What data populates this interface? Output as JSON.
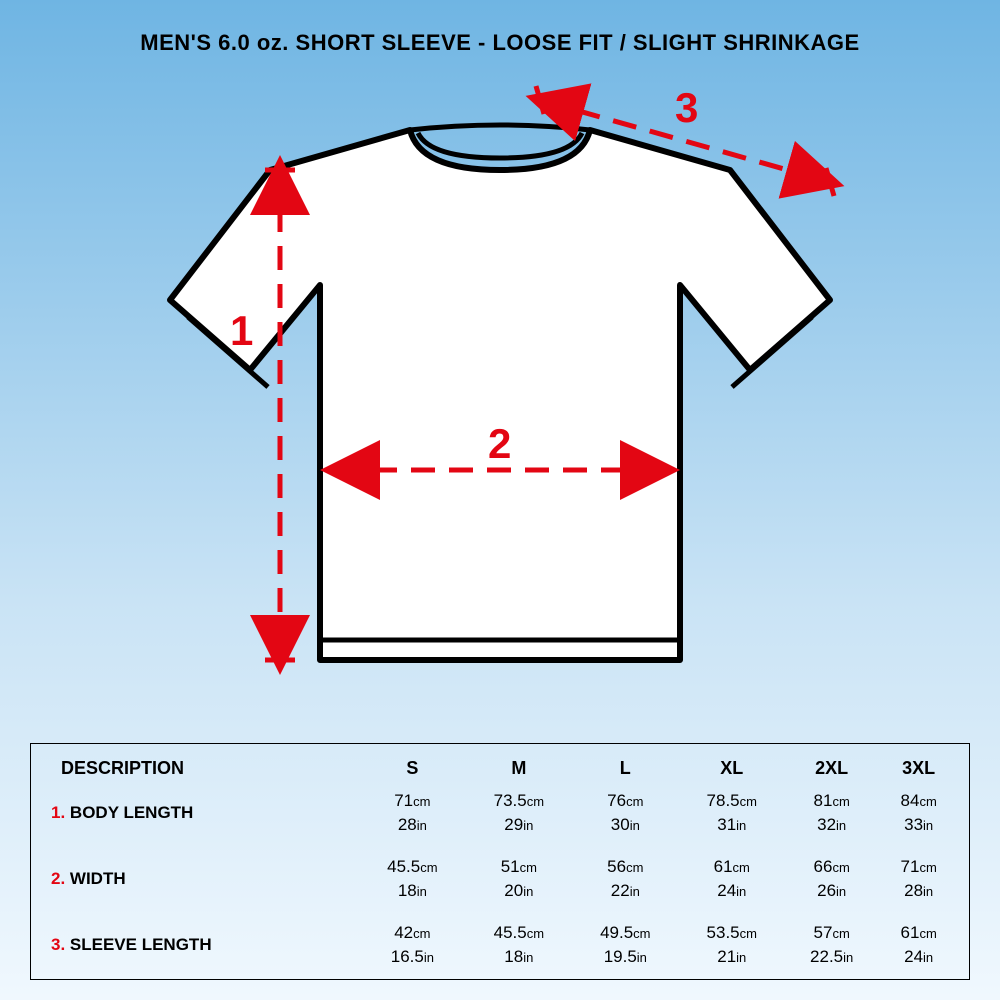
{
  "title": "MEN'S 6.0 oz. SHORT SLEEVE - LOOSE FIT / SLIGHT SHRINKAGE",
  "diagram": {
    "type": "infographic",
    "background_gradient_top": "#6fb5e3",
    "background_gradient_bottom": "#f0f8fe",
    "shirt_fill": "#ffffff",
    "shirt_stroke": "#000000",
    "shirt_stroke_width": 6,
    "dim_color": "#e30613",
    "dim_stroke_width": 5,
    "dim_dash": "24,14",
    "labels": {
      "length": "1",
      "width": "2",
      "sleeve": "3"
    },
    "label_fontsize": 42
  },
  "table": {
    "type": "table",
    "border_color": "#000000",
    "header_fontsize": 18,
    "body_fontsize": 17,
    "unit_fontsize": 13,
    "accent_color": "#e30613",
    "columns": [
      "DESCRIPTION",
      "S",
      "M",
      "L",
      "XL",
      "2XL",
      "3XL"
    ],
    "rows": [
      {
        "num": "1.",
        "label": "BODY LENGTH",
        "cm": [
          "71",
          "73.5",
          "76",
          "78.5",
          "81",
          "84"
        ],
        "in": [
          "28",
          "29",
          "30",
          "31",
          "32",
          "33"
        ]
      },
      {
        "num": "2.",
        "label": "WIDTH",
        "cm": [
          "45.5",
          "51",
          "56",
          "61",
          "66",
          "71"
        ],
        "in": [
          "18",
          "20",
          "22",
          "24",
          "26",
          "28"
        ]
      },
      {
        "num": "3.",
        "label": "SLEEVE LENGTH",
        "cm": [
          "42",
          "45.5",
          "49.5",
          "53.5",
          "57",
          "61"
        ],
        "in": [
          "16.5",
          "18",
          "19.5",
          "21",
          "22.5",
          "24"
        ]
      }
    ],
    "units": {
      "cm": "cm",
      "in": "in"
    }
  }
}
